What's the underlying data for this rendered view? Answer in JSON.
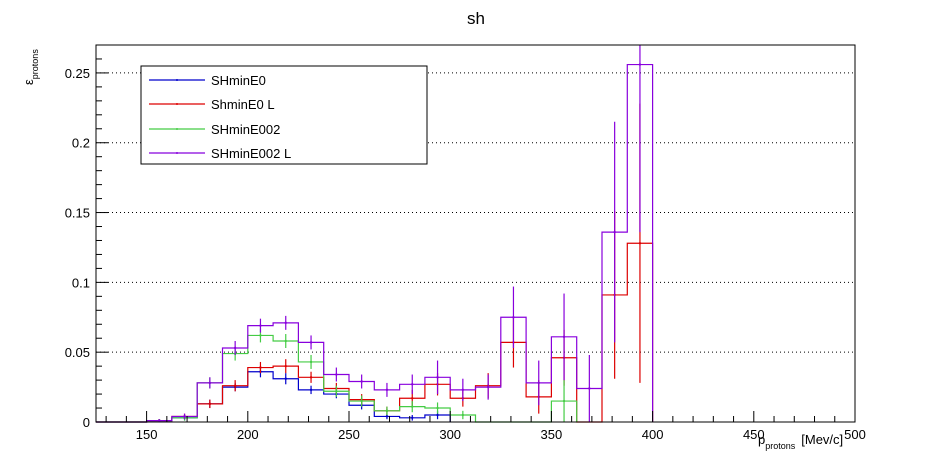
{
  "chart_data": {
    "type": "line",
    "title": "sh",
    "xlabel": "p",
    "xlabel_sub": "protons",
    "xlabel_unit": "[Mev/c]",
    "ylabel": "ε",
    "ylabel_sub": "protons",
    "xlim": [
      125,
      500
    ],
    "ylim": [
      0,
      0.27
    ],
    "x_ticks": [
      150,
      200,
      250,
      300,
      350,
      400,
      450,
      500
    ],
    "x_tick_labels": [
      "150",
      "200",
      "250",
      "300",
      "350",
      "400",
      "450",
      "500"
    ],
    "y_ticks": [
      0,
      0.05,
      0.1,
      0.15,
      0.2,
      0.25
    ],
    "y_tick_labels": [
      "0",
      "0.05",
      "0.1",
      "0.15",
      "0.2",
      "0.25"
    ],
    "grid": "horizontal dotted",
    "legend_position": "top-left",
    "bin_width": 12.5,
    "bin_centers": [
      131.25,
      143.75,
      156.25,
      168.75,
      181.25,
      193.75,
      206.25,
      218.75,
      231.25,
      243.75,
      256.25,
      268.75,
      281.25,
      293.75,
      306.25,
      318.75,
      331.25,
      343.75,
      356.25,
      368.75,
      381.25,
      393.75
    ],
    "series": [
      {
        "name": "SHminE0",
        "color": "#0000cc",
        "values": [
          0,
          0,
          0.001,
          0.003,
          0.013,
          0.025,
          0.036,
          0.031,
          0.023,
          0.02,
          0.012,
          0.004,
          0.003,
          0.005,
          0,
          0,
          0,
          0,
          0,
          0,
          0,
          0
        ],
        "errors": [
          0,
          0,
          0.001,
          0.002,
          0.003,
          0.003,
          0.004,
          0.004,
          0.003,
          0.003,
          0.003,
          0.002,
          0.002,
          0.003,
          0,
          0,
          0,
          0,
          0,
          0,
          0,
          0
        ]
      },
      {
        "name": "ShminE0 L",
        "color": "#dd0000",
        "values": [
          0,
          0,
          0.001,
          0.004,
          0.013,
          0.026,
          0.039,
          0.04,
          0.032,
          0.024,
          0.016,
          0.008,
          0.017,
          0.027,
          0.017,
          0.026,
          0.057,
          0.018,
          0.046,
          0,
          0.091,
          0.128
        ],
        "errors": [
          0,
          0,
          0.001,
          0.002,
          0.003,
          0.004,
          0.004,
          0.005,
          0.004,
          0.004,
          0.004,
          0.003,
          0.006,
          0.008,
          0.006,
          0.009,
          0.018,
          0.012,
          0.02,
          0,
          0.06,
          0.1
        ]
      },
      {
        "name": "SHminE002",
        "color": "#44cc44",
        "values": [
          0,
          0,
          0.001,
          0.003,
          0.028,
          0.049,
          0.062,
          0.058,
          0.043,
          0.022,
          0.015,
          0.008,
          0.011,
          0.01,
          0.005,
          0,
          0,
          0,
          0.015,
          0,
          0,
          0
        ],
        "errors": [
          0,
          0,
          0.001,
          0.002,
          0.004,
          0.005,
          0.005,
          0.005,
          0.005,
          0.004,
          0.004,
          0.003,
          0.004,
          0.004,
          0.003,
          0,
          0,
          0,
          0.015,
          0,
          0,
          0
        ]
      },
      {
        "name": "SHminE002 L",
        "color": "#8800dd",
        "values": [
          0,
          0,
          0.001,
          0.004,
          0.028,
          0.053,
          0.069,
          0.071,
          0.057,
          0.034,
          0.029,
          0.023,
          0.027,
          0.032,
          0.023,
          0.025,
          0.075,
          0.028,
          0.061,
          0.024,
          0.136,
          0.256
        ],
        "errors": [
          0,
          0,
          0.001,
          0.002,
          0.004,
          0.005,
          0.005,
          0.005,
          0.005,
          0.005,
          0.005,
          0.005,
          0.007,
          0.012,
          0.008,
          0.009,
          0.022,
          0.016,
          0.031,
          0.024,
          0.079,
          0.12
        ]
      }
    ]
  }
}
